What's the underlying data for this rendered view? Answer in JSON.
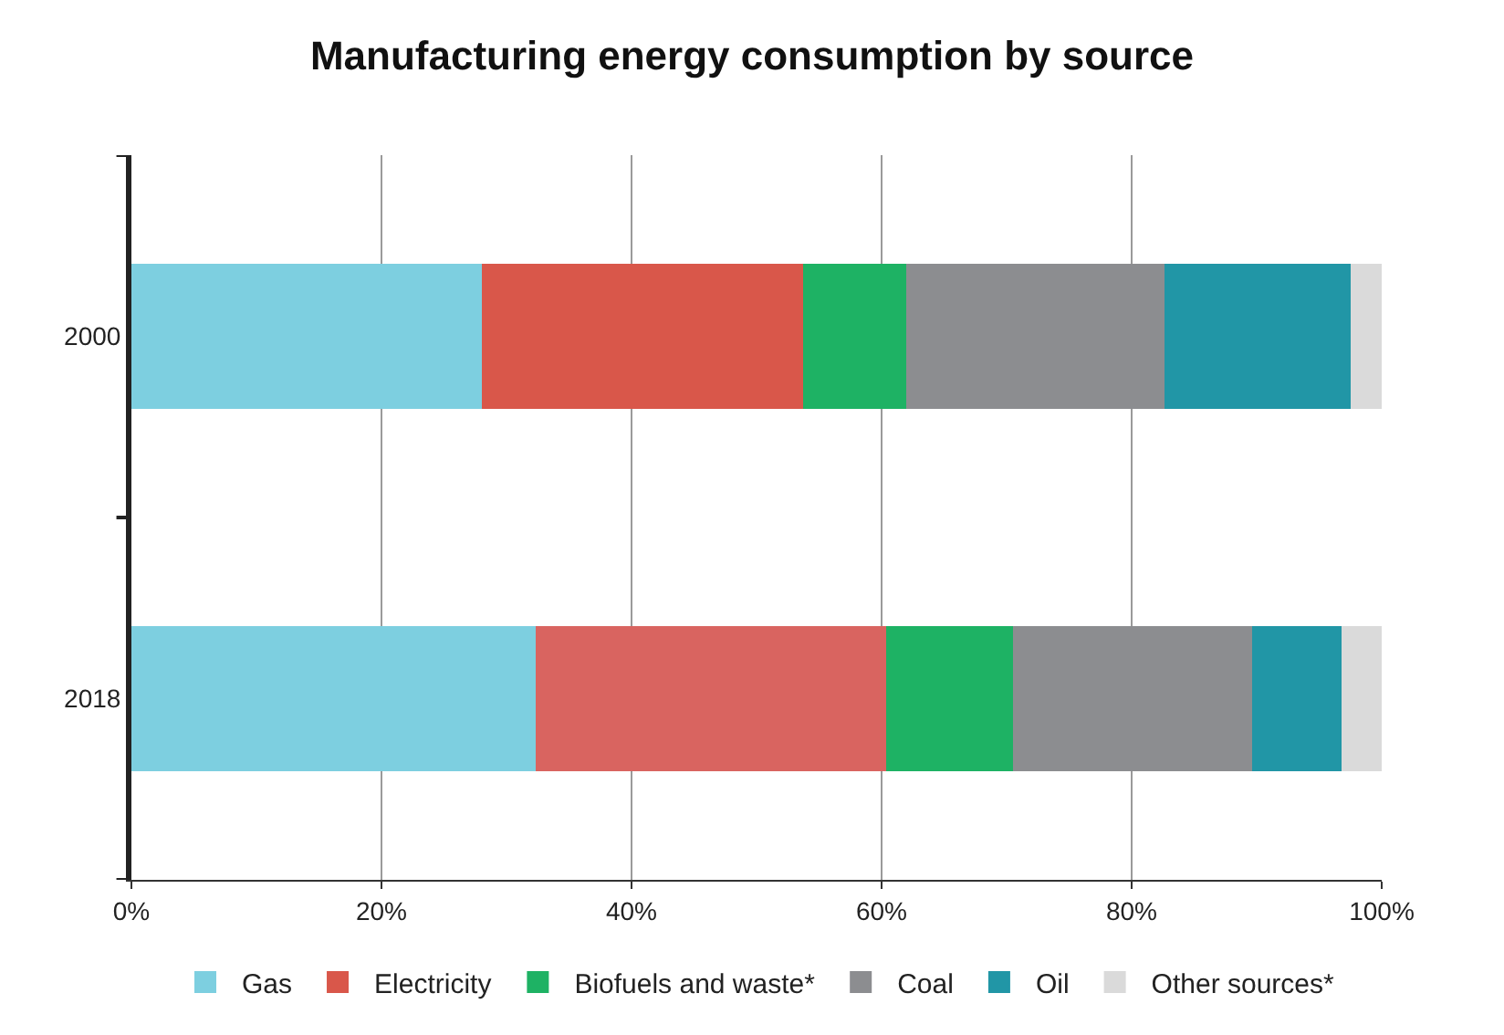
{
  "chart_data": {
    "type": "bar",
    "title": "Manufacturing energy consumption by source",
    "orientation": "horizontal",
    "stacked": true,
    "categories": [
      "2000",
      "2018"
    ],
    "series": [
      {
        "name": "Gas",
        "color": "#7dcfe0",
        "values": [
          28.0,
          32.3
        ]
      },
      {
        "name": "Electricity",
        "colors": [
          "#d9574a",
          "#d96460"
        ],
        "values": [
          25.7,
          28.1
        ]
      },
      {
        "name": "Biofuels and waste*",
        "color": "#1eb264",
        "values": [
          8.3,
          10.1
        ]
      },
      {
        "name": "Coal",
        "color": "#8c8d90",
        "values": [
          20.6,
          19.1
        ]
      },
      {
        "name": "Oil",
        "color": "#2196a6",
        "values": [
          14.9,
          7.2
        ]
      },
      {
        "name": "Other sources*",
        "color": "#dadada",
        "values": [
          2.5,
          3.2
        ]
      }
    ],
    "xlim": [
      0,
      100
    ],
    "xticks": [
      {
        "value": 0,
        "label": "0%"
      },
      {
        "value": 20,
        "label": "20%"
      },
      {
        "value": 40,
        "label": "40%"
      },
      {
        "value": 60,
        "label": "60%"
      },
      {
        "value": 80,
        "label": "80%"
      },
      {
        "value": 100,
        "label": "100%"
      }
    ],
    "grid": "x",
    "legend": "bottom"
  }
}
